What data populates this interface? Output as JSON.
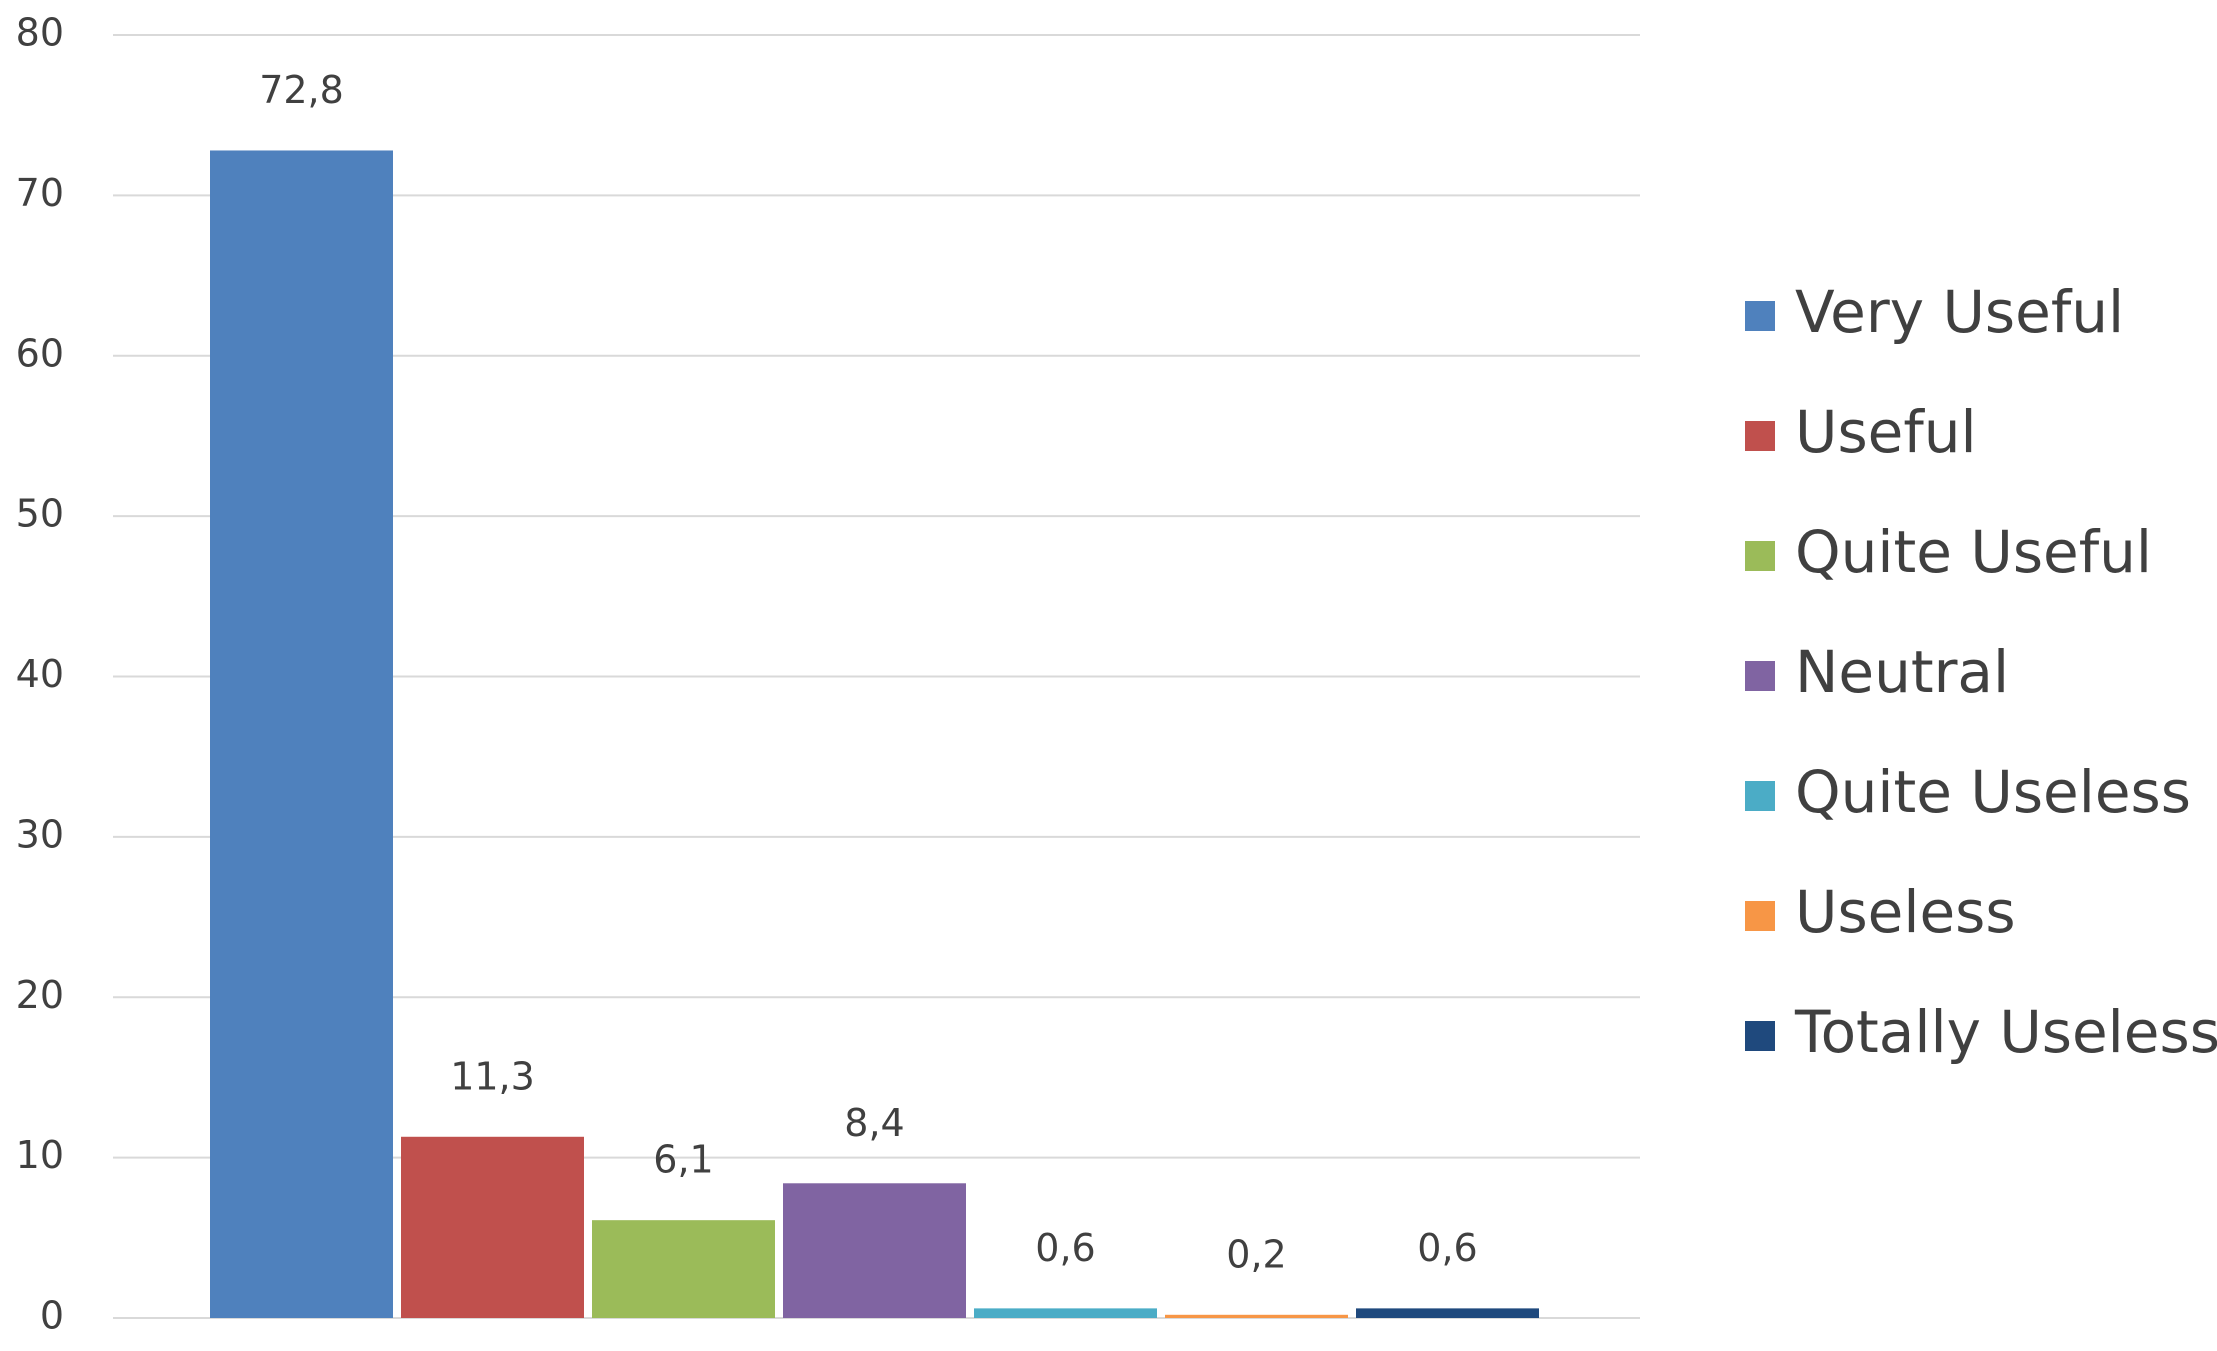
{
  "chart_data": {
    "type": "bar",
    "categories": [
      null
    ],
    "series": [
      {
        "name": "Very Useful",
        "color": "#4f81bd",
        "values": [
          72.8
        ],
        "value_labels": [
          "72,8"
        ]
      },
      {
        "name": "Useful",
        "color": "#c0504d",
        "values": [
          11.3
        ],
        "value_labels": [
          "11,3"
        ]
      },
      {
        "name": "Quite Useful",
        "color": "#9bbb59",
        "values": [
          6.1
        ],
        "value_labels": [
          "6,1"
        ]
      },
      {
        "name": "Neutral",
        "color": "#8064a2",
        "values": [
          8.4
        ],
        "value_labels": [
          "8,4"
        ]
      },
      {
        "name": "Quite Useless",
        "color": "#4bacc6",
        "values": [
          0.6
        ],
        "value_labels": [
          "0,6"
        ]
      },
      {
        "name": "Useless",
        "color": "#f79646",
        "values": [
          0.2
        ],
        "value_labels": [
          "0,2"
        ]
      },
      {
        "name": "Totally Useless",
        "color": "#1f497d",
        "values": [
          0.6
        ],
        "value_labels": [
          "0,6"
        ]
      }
    ],
    "ylim": [
      0,
      80
    ],
    "yticks": [
      0,
      10,
      20,
      30,
      40,
      50,
      60,
      70,
      80
    ],
    "grid": true,
    "legend": "right"
  }
}
